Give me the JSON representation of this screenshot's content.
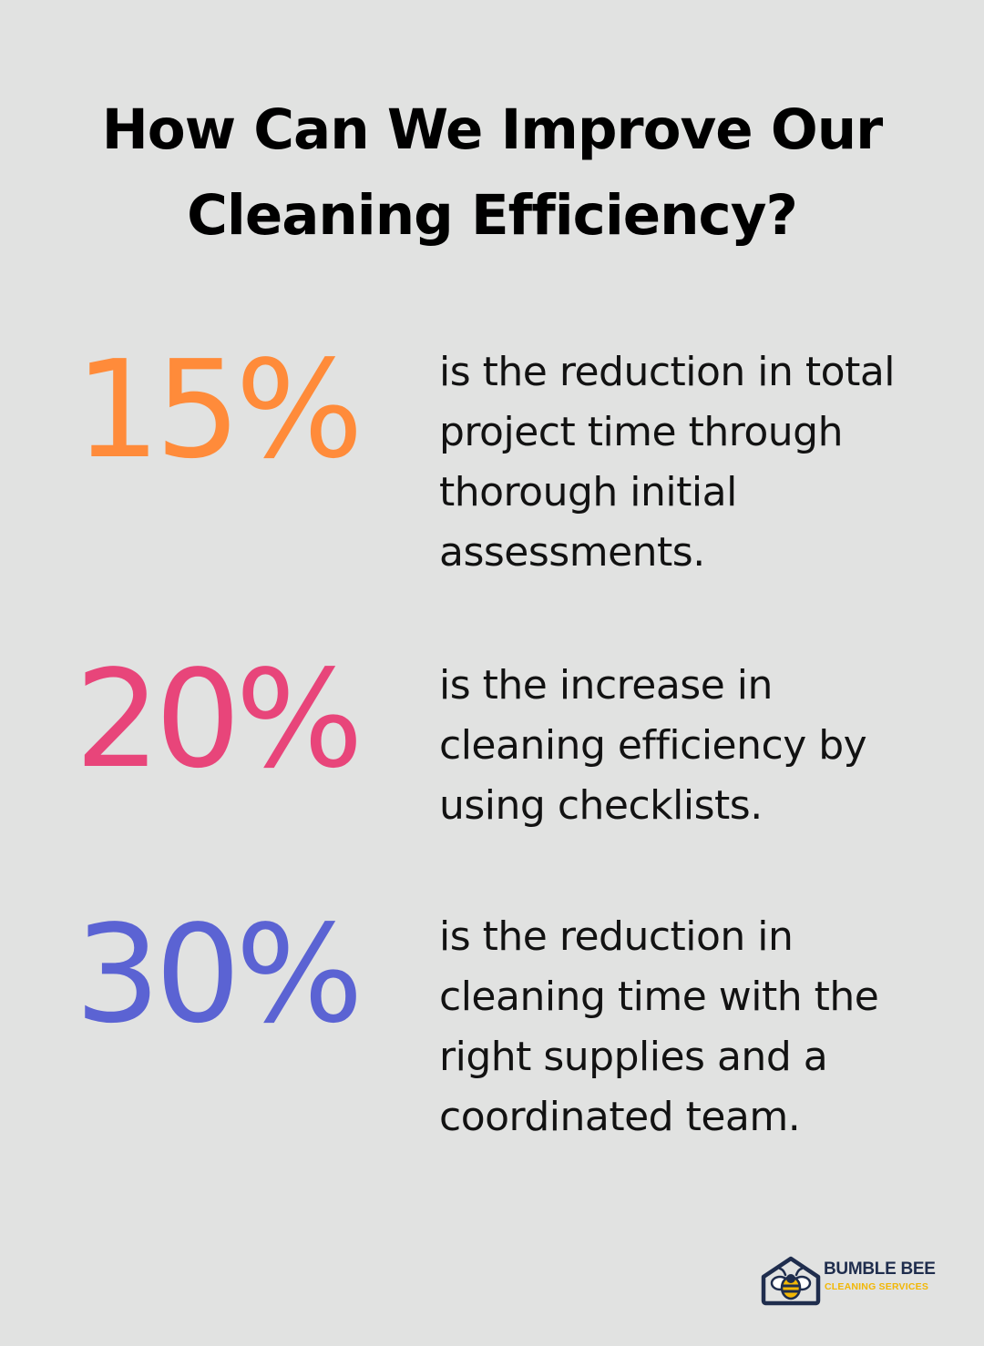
{
  "title": {
    "line1": "How Can We Improve Our",
    "line2": "Cleaning Efficiency?"
  },
  "stats": [
    {
      "value": "15%",
      "color": "#ff8b3a",
      "description": "is the reduction in total project time through thorough initial assessments."
    },
    {
      "value": "20%",
      "color": "#e8457a",
      "description": "is the increase in cleaning efficiency by using checklists."
    },
    {
      "value": "30%",
      "color": "#5b63d3",
      "description": "is the reduction in cleaning time with the right supplies and a coordinated team."
    }
  ],
  "logo": {
    "name": "BUMBLE BEE",
    "subtitle": "CLEANING SERVICES",
    "icon": "bee-house-icon",
    "primary_color": "#1f2d4d",
    "accent_color": "#f2b705"
  }
}
